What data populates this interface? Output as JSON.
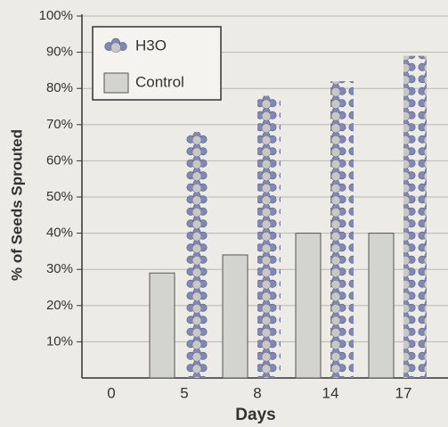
{
  "chart_data": {
    "type": "bar",
    "x_label": "Days",
    "y_label": "% of Seeds Sprouted",
    "categories": [
      "0",
      "5",
      "8",
      "14",
      "17"
    ],
    "series": [
      {
        "name": "H3O",
        "color": "#8088b8",
        "values": [
          0,
          68,
          78,
          82,
          89
        ]
      },
      {
        "name": "Control",
        "color": "#d3d3cf",
        "values": [
          0,
          29,
          34,
          40,
          40
        ]
      }
    ],
    "ylim": [
      0,
      100
    ],
    "yticks": [
      {
        "value": 10,
        "label": "10%"
      },
      {
        "value": 20,
        "label": "20%"
      },
      {
        "value": 30,
        "label": "30%"
      },
      {
        "value": 40,
        "label": "40%"
      },
      {
        "value": 50,
        "label": "50%"
      },
      {
        "value": 60,
        "label": "60%"
      },
      {
        "value": 70,
        "label": "70%"
      },
      {
        "value": 80,
        "label": "80%"
      },
      {
        "value": 90,
        "label": "90%"
      },
      {
        "value": 100,
        "label": "100%"
      }
    ],
    "grid": true,
    "legend": "top-left"
  }
}
